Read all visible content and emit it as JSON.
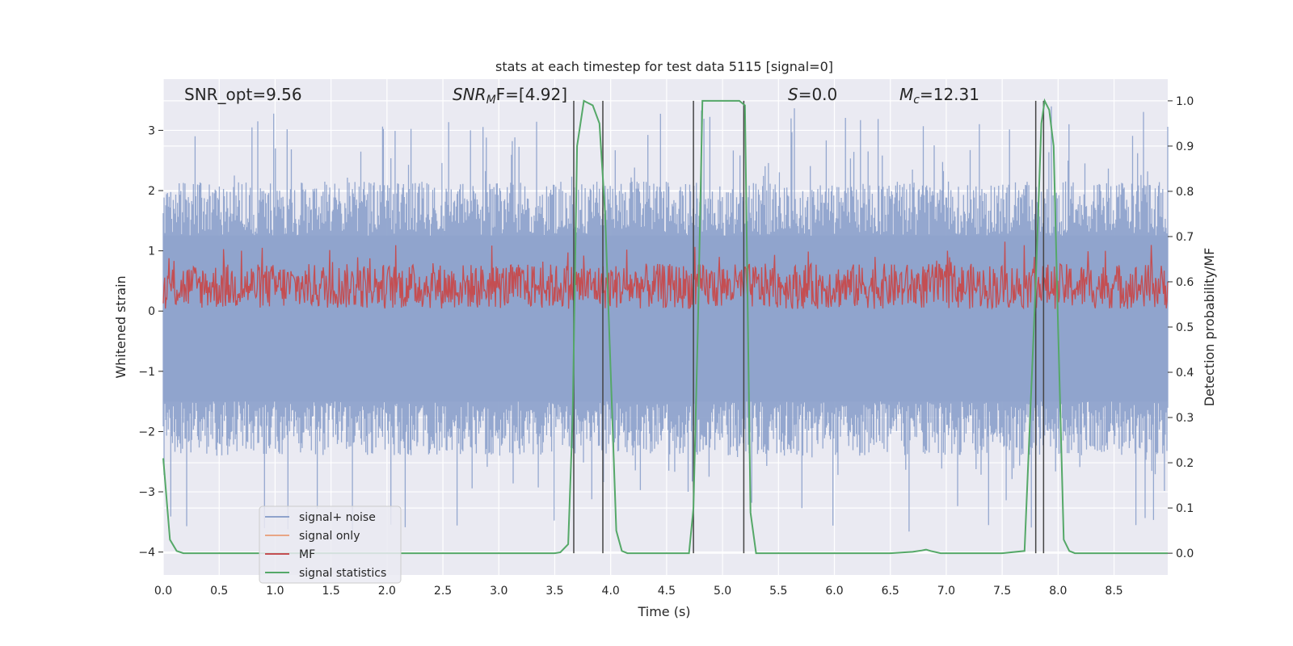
{
  "chart_data": {
    "type": "line",
    "title": "stats at each timestep for test data 5115 [signal=0]",
    "xlabel": "Time (s)",
    "ylabel_left": "Whitened strain",
    "ylabel_right": "Detection probability/MF",
    "xlim": [
      0,
      8.98
    ],
    "ylim_left": [
      -4.38,
      3.85
    ],
    "ylim_right": [
      -0.048,
      1.048
    ],
    "xticks": [
      0.0,
      0.5,
      1.0,
      1.5,
      2.0,
      2.5,
      3.0,
      3.5,
      4.0,
      4.5,
      5.0,
      5.5,
      6.0,
      6.5,
      7.0,
      7.5,
      8.0,
      8.5
    ],
    "xtick_labels": [
      "0.0",
      "0.5",
      "1.0",
      "1.5",
      "2.0",
      "2.5",
      "3.0",
      "3.5",
      "4.0",
      "4.5",
      "5.0",
      "5.5",
      "6.0",
      "6.5",
      "7.0",
      "7.5",
      "8.0",
      "8.5"
    ],
    "yticks_left": [
      -4,
      -3,
      -2,
      -1,
      0,
      1,
      2,
      3
    ],
    "ytick_labels_left": [
      "−4",
      "−3",
      "−2",
      "−1",
      "0",
      "1",
      "2",
      "3"
    ],
    "yticks_right": [
      0.0,
      0.1,
      0.2,
      0.3,
      0.4,
      0.5,
      0.6,
      0.7,
      0.8,
      0.9,
      1.0
    ],
    "ytick_labels_right": [
      "0.0",
      "0.1",
      "0.2",
      "0.3",
      "0.4",
      "0.5",
      "0.6",
      "0.7",
      "0.8",
      "0.9",
      "1.0"
    ],
    "grid": true,
    "legend_position": "lower-left",
    "annotations": {
      "snr_opt": "SNR_opt=9.56",
      "snr_mf_main": "SNR",
      "snr_mf_sub": "M",
      "snr_mf_rest": "F=[4.92]",
      "s_main": "S",
      "s_rest": "=0.0",
      "mc_main": "M",
      "mc_sub": "c",
      "mc_rest": "=12.31"
    },
    "series": [
      {
        "name": "signal+ noise",
        "axis": "left",
        "color": "#8fa3cc",
        "description_envelope": {
          "typical_lower": -1.5,
          "typical_upper": 1.25,
          "spikes_up": [
            2.3,
            3.35,
            3.2,
            2.8,
            3.3
          ],
          "spikes_down": [
            -3.1,
            -3.6,
            -3.7,
            -3.5
          ]
        }
      },
      {
        "name": "signal only",
        "axis": "left",
        "color": "#e8a585",
        "values": []
      },
      {
        "name": "MF",
        "axis": "right",
        "color": "#c44e52",
        "typical_lower": 0.54,
        "typical_upper": 0.64,
        "peak": 0.69
      },
      {
        "name": "signal statistics",
        "axis": "right",
        "color": "#55a868",
        "x": [
          0.0,
          0.06,
          0.12,
          0.18,
          0.3,
          0.5,
          1.0,
          2.0,
          3.0,
          3.5,
          3.55,
          3.62,
          3.66,
          3.7,
          3.76,
          3.84,
          3.9,
          3.95,
          4.0,
          4.05,
          4.1,
          4.15,
          4.2,
          4.3,
          4.5,
          4.7,
          4.74,
          4.78,
          4.82,
          4.9,
          5.0,
          5.15,
          5.2,
          5.25,
          5.3,
          5.4,
          5.6,
          6.0,
          6.5,
          6.7,
          6.78,
          6.82,
          6.86,
          6.95,
          7.2,
          7.5,
          7.7,
          7.75,
          7.8,
          7.85,
          7.88,
          7.92,
          7.96,
          8.0,
          8.05,
          8.1,
          8.15,
          8.2,
          8.5,
          8.98
        ],
        "y": [
          0.21,
          0.03,
          0.005,
          0.0,
          0.0,
          0.0,
          0.0,
          0.0,
          0.0,
          0.0,
          0.002,
          0.02,
          0.3,
          0.9,
          1.0,
          0.99,
          0.95,
          0.75,
          0.4,
          0.05,
          0.005,
          0.0,
          0.0,
          0.0,
          0.0,
          0.0,
          0.1,
          0.5,
          1.0,
          1.0,
          1.0,
          1.0,
          0.99,
          0.09,
          0.0,
          0.0,
          0.0,
          0.0,
          0.0,
          0.003,
          0.006,
          0.008,
          0.005,
          0.0,
          0.0,
          0.0,
          0.005,
          0.3,
          0.6,
          0.95,
          1.0,
          0.98,
          0.9,
          0.5,
          0.03,
          0.005,
          0.0,
          0.0,
          0.0,
          0.0
        ]
      }
    ],
    "vertical_lines_x": [
      3.67,
      3.93,
      4.74,
      5.19,
      7.8,
      7.87
    ]
  }
}
